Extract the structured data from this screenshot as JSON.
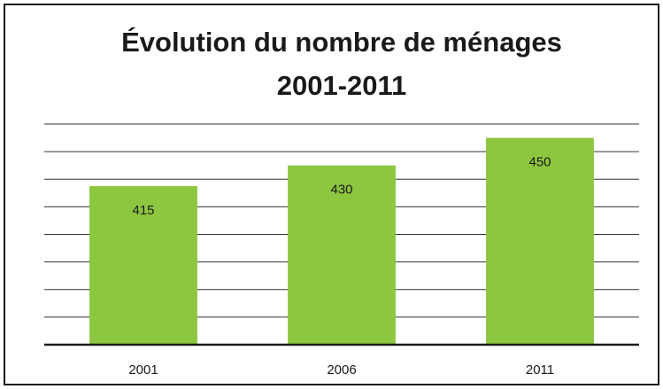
{
  "chart_data": {
    "type": "bar",
    "title": [
      "Évolution du nombre de ménages",
      "2001-2011"
    ],
    "categories": [
      "2001",
      "2006",
      "2011"
    ],
    "values": [
      415,
      430,
      450
    ],
    "color": "#8dc63f",
    "ylim": [
      300,
      460
    ],
    "yticks": [
      300,
      320,
      340,
      360,
      380,
      400,
      420,
      440,
      460
    ],
    "grid": true
  }
}
